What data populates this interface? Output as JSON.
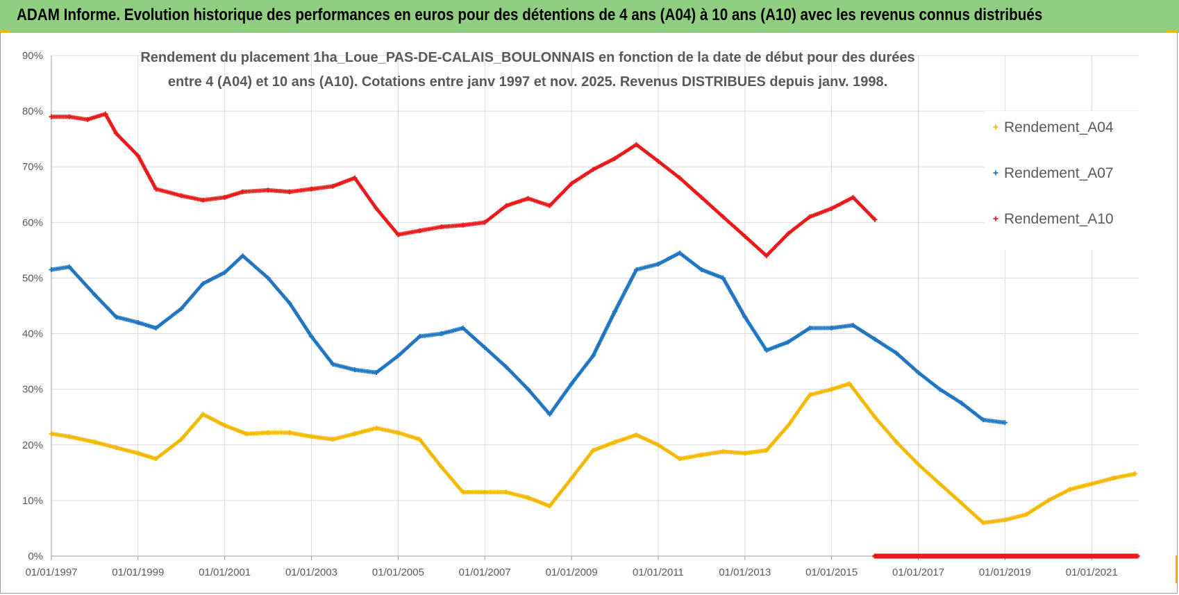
{
  "header": {
    "title": "ADAM Informe. Evolution historique des performances en euros pour des détentions de 4 ans (A04) à 10 ans (A10) avec les revenus connus distribués"
  },
  "chart_data": {
    "type": "scatter",
    "title_lines": [
      "Rendement du placement 1ha_Loue_PAS-DE-CALAIS_BOULONNAIS en fonction de la date de début pour des durées",
      "entre 4 (A04) et 10 ans (A10).  Cotations entre janv 1997 et nov. 2025. Revenus DISTRIBUES depuis janv. 1998."
    ],
    "xlabel": "",
    "ylabel": "",
    "x_range": [
      "1997-01-01",
      "2022-02-01"
    ],
    "y_range": [
      0,
      0.9
    ],
    "y_ticks": [
      0,
      0.1,
      0.2,
      0.3,
      0.4,
      0.5,
      0.6,
      0.7,
      0.8,
      0.9
    ],
    "y_tick_labels": [
      "0%",
      "10%",
      "20%",
      "30%",
      "40%",
      "50%",
      "60%",
      "70%",
      "80%",
      "90%"
    ],
    "x_ticks": [
      "1997-01-01",
      "1999-01-01",
      "2001-01-01",
      "2003-01-01",
      "2005-01-01",
      "2007-01-01",
      "2009-01-01",
      "2011-01-01",
      "2013-01-01",
      "2015-01-01",
      "2017-01-01",
      "2019-01-01",
      "2021-01-01"
    ],
    "x_tick_labels": [
      "01/01/1997",
      "01/01/1999",
      "01/01/2001",
      "01/01/2003",
      "01/01/2005",
      "01/01/2007",
      "01/01/2009",
      "01/01/2011",
      "01/01/2013",
      "01/01/2015",
      "01/01/2017",
      "01/01/2019",
      "01/01/2021"
    ],
    "grid": true,
    "legend_position": "right",
    "series": [
      {
        "name": "Rendement_A04",
        "color": "#f5b800",
        "marker": "plus",
        "x": [
          "1997-01-01",
          "1997-06-01",
          "1998-01-01",
          "1998-07-01",
          "1999-01-01",
          "1999-06-01",
          "2000-01-01",
          "2000-07-01",
          "2001-01-01",
          "2001-07-01",
          "2002-01-01",
          "2002-07-01",
          "2003-01-01",
          "2003-07-01",
          "2004-01-01",
          "2004-07-01",
          "2005-01-01",
          "2005-07-01",
          "2006-01-01",
          "2006-07-01",
          "2007-01-01",
          "2007-07-01",
          "2008-01-01",
          "2008-07-01",
          "2009-01-01",
          "2009-07-01",
          "2010-01-01",
          "2010-07-01",
          "2011-01-01",
          "2011-07-01",
          "2012-01-01",
          "2012-07-01",
          "2013-01-01",
          "2013-07-01",
          "2014-01-01",
          "2014-07-01",
          "2015-01-01",
          "2015-06-01",
          "2016-01-01",
          "2016-07-01",
          "2017-01-01",
          "2017-07-01",
          "2018-01-01",
          "2018-07-01",
          "2019-01-01",
          "2019-07-01",
          "2020-01-01",
          "2020-07-01",
          "2021-01-01",
          "2021-07-01",
          "2022-01-01"
        ],
        "values": [
          0.22,
          0.215,
          0.205,
          0.195,
          0.185,
          0.175,
          0.21,
          0.255,
          0.235,
          0.22,
          0.222,
          0.222,
          0.215,
          0.21,
          0.22,
          0.23,
          0.222,
          0.21,
          0.16,
          0.115,
          0.115,
          0.115,
          0.105,
          0.09,
          0.14,
          0.19,
          0.205,
          0.218,
          0.2,
          0.175,
          0.182,
          0.188,
          0.185,
          0.19,
          0.235,
          0.29,
          0.3,
          0.31,
          0.25,
          0.205,
          0.165,
          0.13,
          0.095,
          0.06,
          0.065,
          0.075,
          0.1,
          0.12,
          0.13,
          0.14,
          0.148
        ]
      },
      {
        "name": "Rendement_A07",
        "color": "#1f77c4",
        "marker": "plus",
        "x": [
          "1997-01-01",
          "1997-06-01",
          "1998-01-01",
          "1998-07-01",
          "1999-01-01",
          "1999-06-01",
          "2000-01-01",
          "2000-07-01",
          "2001-01-01",
          "2001-06-01",
          "2002-01-01",
          "2002-07-01",
          "2003-01-01",
          "2003-07-01",
          "2004-01-01",
          "2004-07-01",
          "2005-01-01",
          "2005-07-01",
          "2006-01-01",
          "2006-07-01",
          "2007-01-01",
          "2007-07-01",
          "2008-01-01",
          "2008-07-01",
          "2009-01-01",
          "2009-07-01",
          "2010-01-01",
          "2010-07-01",
          "2011-01-01",
          "2011-07-01",
          "2012-01-01",
          "2012-07-01",
          "2013-01-01",
          "2013-07-01",
          "2014-01-01",
          "2014-07-01",
          "2015-01-01",
          "2015-07-01",
          "2016-01-01",
          "2016-07-01",
          "2017-01-01",
          "2017-07-01",
          "2018-01-01",
          "2018-07-01",
          "2019-01-01"
        ],
        "values": [
          0.515,
          0.52,
          0.47,
          0.43,
          0.42,
          0.41,
          0.445,
          0.49,
          0.51,
          0.54,
          0.5,
          0.455,
          0.395,
          0.345,
          0.335,
          0.33,
          0.36,
          0.395,
          0.4,
          0.41,
          0.375,
          0.34,
          0.3,
          0.255,
          0.31,
          0.36,
          0.44,
          0.515,
          0.525,
          0.545,
          0.515,
          0.5,
          0.43,
          0.37,
          0.385,
          0.41,
          0.41,
          0.415,
          0.39,
          0.365,
          0.33,
          0.3,
          0.275,
          0.245,
          0.24
        ]
      },
      {
        "name": "Rendement_A10",
        "color": "#e81a1a",
        "marker": "plus",
        "x": [
          "1997-01-01",
          "1997-06-01",
          "1997-11-01",
          "1998-04-01",
          "1998-07-01",
          "1999-01-01",
          "1999-06-01",
          "2000-01-01",
          "2000-07-01",
          "2001-01-01",
          "2001-06-01",
          "2002-01-01",
          "2002-07-01",
          "2003-01-01",
          "2003-07-01",
          "2004-01-01",
          "2004-07-01",
          "2005-01-01",
          "2005-07-01",
          "2006-01-01",
          "2006-07-01",
          "2007-01-01",
          "2007-07-01",
          "2008-01-01",
          "2008-07-01",
          "2009-01-01",
          "2009-07-01",
          "2010-01-01",
          "2010-07-01",
          "2011-01-01",
          "2011-07-01",
          "2012-01-01",
          "2012-07-01",
          "2013-01-01",
          "2013-07-01",
          "2014-01-01",
          "2014-07-01",
          "2015-01-01",
          "2015-07-01",
          "2016-01-01"
        ],
        "values": [
          0.79,
          0.79,
          0.785,
          0.795,
          0.76,
          0.72,
          0.66,
          0.648,
          0.64,
          0.645,
          0.655,
          0.658,
          0.655,
          0.66,
          0.665,
          0.68,
          0.625,
          0.578,
          0.585,
          0.592,
          0.595,
          0.6,
          0.63,
          0.643,
          0.63,
          0.67,
          0.695,
          0.715,
          0.74,
          0.71,
          0.68,
          0.645,
          0.61,
          0.575,
          0.54,
          0.58,
          0.61,
          0.625,
          0.645,
          0.605
        ],
        "zero_segment": [
          "2016-01-01",
          "2022-02-01"
        ]
      }
    ]
  }
}
